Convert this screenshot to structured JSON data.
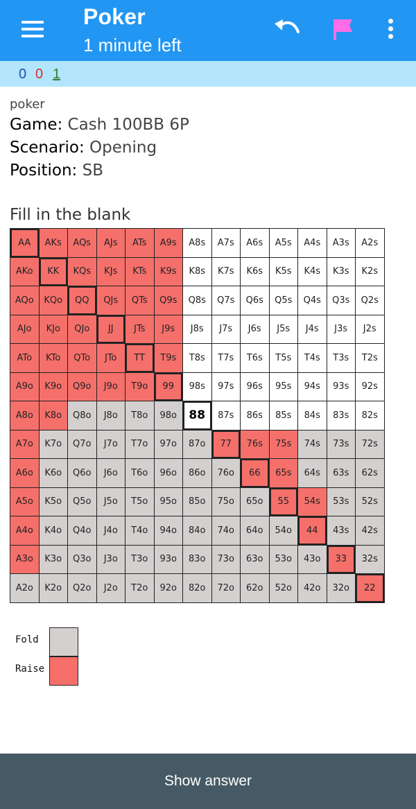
{
  "appbar": {
    "title": "Poker",
    "subtitle": "1 minute left",
    "icons": [
      "menu-icon",
      "undo-icon",
      "flag-icon",
      "more-vert-icon"
    ],
    "flag_color": "#ff6ee6"
  },
  "stats": {
    "new": "0",
    "learning": "0",
    "review": "1"
  },
  "card": {
    "deck": "poker",
    "game_label": "Game:",
    "game_value": "Cash 100BB 6P",
    "scenario_label": "Scenario:",
    "scenario_value": "Opening",
    "position_label": "Position:",
    "position_value": "SB",
    "prompt": "Fill in the blank"
  },
  "ranks": [
    "A",
    "K",
    "Q",
    "J",
    "T",
    "9",
    "8",
    "7",
    "6",
    "5",
    "4",
    "3",
    "2"
  ],
  "range_grid": {
    "colors": {
      "fold": "#d3d0cf",
      "raise": "#f5706b",
      "blank": "#ffffff"
    },
    "selected_hand": "88",
    "rows": [
      [
        "raise",
        "raise",
        "raise",
        "raise",
        "raise",
        "raise",
        "blank",
        "blank",
        "blank",
        "blank",
        "blank",
        "blank",
        "blank"
      ],
      [
        "raise",
        "raise",
        "raise",
        "raise",
        "raise",
        "raise",
        "blank",
        "blank",
        "blank",
        "blank",
        "blank",
        "blank",
        "blank"
      ],
      [
        "raise",
        "raise",
        "raise",
        "raise",
        "raise",
        "raise",
        "blank",
        "blank",
        "blank",
        "blank",
        "blank",
        "blank",
        "blank"
      ],
      [
        "raise",
        "raise",
        "raise",
        "raise",
        "raise",
        "raise",
        "blank",
        "blank",
        "blank",
        "blank",
        "blank",
        "blank",
        "blank"
      ],
      [
        "raise",
        "raise",
        "raise",
        "raise",
        "raise",
        "raise",
        "blank",
        "blank",
        "blank",
        "blank",
        "blank",
        "blank",
        "blank"
      ],
      [
        "raise",
        "raise",
        "raise",
        "raise",
        "raise",
        "raise",
        "blank",
        "blank",
        "blank",
        "blank",
        "blank",
        "blank",
        "blank"
      ],
      [
        "raise",
        "raise",
        "fold",
        "fold",
        "fold",
        "fold",
        "selected",
        "blank",
        "blank",
        "blank",
        "blank",
        "blank",
        "blank"
      ],
      [
        "raise",
        "fold",
        "fold",
        "fold",
        "fold",
        "fold",
        "fold",
        "raise",
        "raise",
        "raise",
        "fold",
        "fold",
        "fold"
      ],
      [
        "raise",
        "fold",
        "fold",
        "fold",
        "fold",
        "fold",
        "fold",
        "fold",
        "raise",
        "raise",
        "fold",
        "fold",
        "fold"
      ],
      [
        "raise",
        "fold",
        "fold",
        "fold",
        "fold",
        "fold",
        "fold",
        "fold",
        "fold",
        "raise",
        "raise",
        "fold",
        "fold"
      ],
      [
        "raise",
        "fold",
        "fold",
        "fold",
        "fold",
        "fold",
        "fold",
        "fold",
        "fold",
        "fold",
        "raise",
        "fold",
        "fold"
      ],
      [
        "raise",
        "fold",
        "fold",
        "fold",
        "fold",
        "fold",
        "fold",
        "fold",
        "fold",
        "fold",
        "fold",
        "raise",
        "fold"
      ],
      [
        "fold",
        "fold",
        "fold",
        "fold",
        "fold",
        "fold",
        "fold",
        "fold",
        "fold",
        "fold",
        "fold",
        "fold",
        "raise"
      ]
    ]
  },
  "legend": {
    "fold": "Fold",
    "raise": "Raise"
  },
  "footer": {
    "show_answer": "Show answer"
  }
}
